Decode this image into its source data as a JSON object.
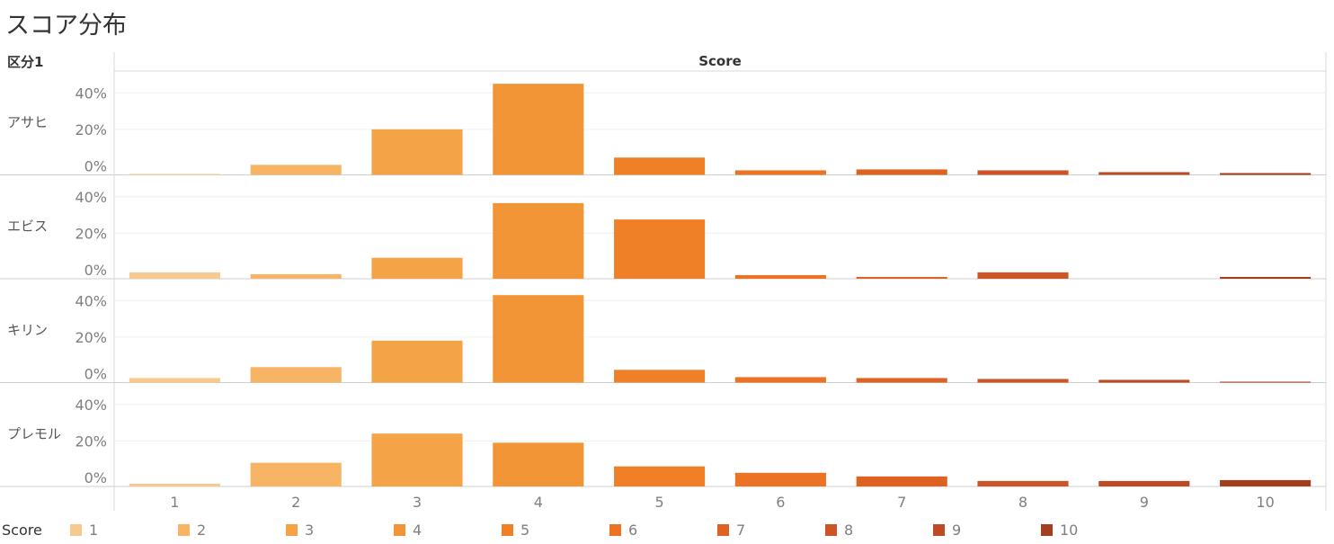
{
  "title": "スコア分布",
  "row_header": "区分1",
  "column_header": "Score",
  "legend": {
    "title": "Score",
    "items": [
      "1",
      "2",
      "3",
      "4",
      "5",
      "6",
      "7",
      "8",
      "9",
      "10"
    ]
  },
  "colors": [
    "#f8c98e",
    "#f6b464",
    "#f4a347",
    "#f29536",
    "#ef8027",
    "#ec7224",
    "#de6322",
    "#cd5525",
    "#be4a24",
    "#a33e1f"
  ],
  "chart_data": {
    "type": "bar",
    "title": "スコア分布",
    "xlabel": "Score",
    "ylabel": "区分1",
    "categories": [
      "1",
      "2",
      "3",
      "4",
      "5",
      "6",
      "7",
      "8",
      "9",
      "10"
    ],
    "y_ticks": [
      "0%",
      "20%",
      "40%"
    ],
    "ylim": [
      -5,
      50
    ],
    "grid": true,
    "legend_position": "bottom",
    "series": [
      {
        "name": "アサヒ",
        "values": [
          0.5,
          5.5,
          25,
          50,
          9.5,
          2.5,
          3,
          2.5,
          1.5,
          1
        ]
      },
      {
        "name": "エビス",
        "values": [
          3.5,
          2.5,
          11.5,
          41.5,
          32.5,
          2,
          1,
          3.5,
          0,
          1
        ]
      },
      {
        "name": "キリン",
        "values": [
          2.5,
          8.5,
          23,
          48,
          7,
          3,
          2.5,
          2,
          1.5,
          0.5
        ]
      },
      {
        "name": "プレモル",
        "values": [
          1.5,
          13,
          29,
          24,
          11,
          7.5,
          5.5,
          3,
          3,
          3.5
        ]
      }
    ]
  }
}
